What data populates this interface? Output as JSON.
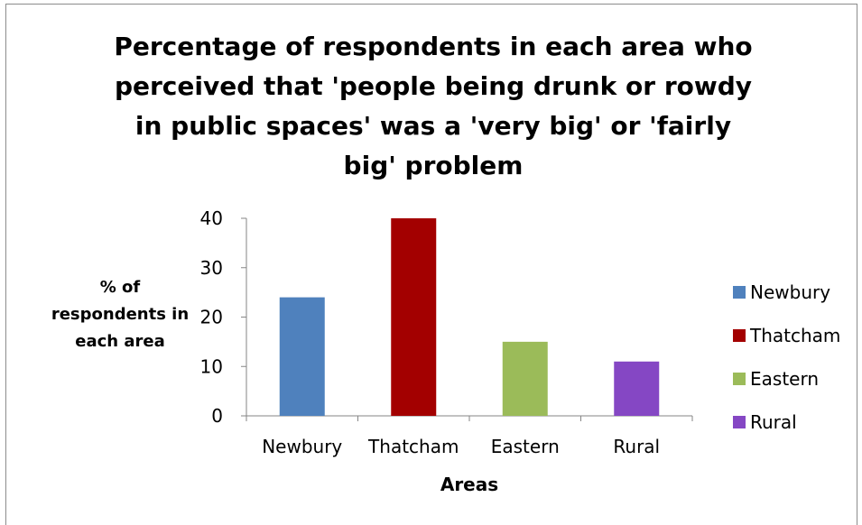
{
  "chart_data": {
    "type": "bar",
    "title": "Percentage of respondents in each area who perceived that 'people being drunk or rowdy in public spaces' was a 'very big' or 'fairly big' problem",
    "xlabel": "Areas",
    "ylabel_lines": [
      "% of",
      "respondents in",
      "each area"
    ],
    "categories": [
      "Newbury",
      "Thatcham",
      "Eastern",
      "Rural"
    ],
    "values": [
      24,
      40,
      15,
      11
    ],
    "colors": [
      "#4f81bd",
      "#a30000",
      "#9bbb59",
      "#8547c4"
    ],
    "ylim": [
      0,
      40
    ],
    "yticks": [
      0,
      10,
      20,
      30,
      40
    ],
    "grid": false,
    "legend_position": "right",
    "legend": [
      "Newbury",
      "Thatcham",
      "Eastern",
      "Rural"
    ]
  }
}
